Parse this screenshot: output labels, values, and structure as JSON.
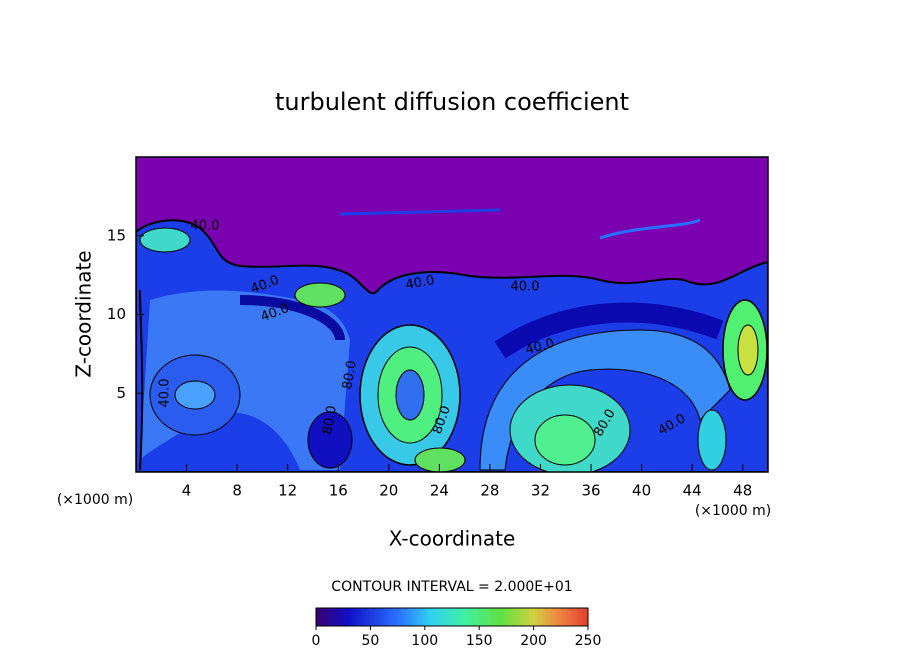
{
  "chart_data": {
    "type": "contour",
    "title": "turbulent diffusion coefficient",
    "x_label": "X-coordinate",
    "y_label": "Z-coordinate",
    "x_unit_left": "(×1000 m)",
    "x_unit_right": "(×1000 m)",
    "xlim": [
      0,
      50
    ],
    "ylim": [
      0,
      20
    ],
    "xticks": [
      4,
      8,
      12,
      16,
      20,
      24,
      28,
      32,
      36,
      40,
      44,
      48
    ],
    "yticks": [
      5,
      10,
      15
    ],
    "contour_interval_text": "CONTOUR INTERVAL = 2.000E+01",
    "contour_labels": [
      "40.0",
      "40.0",
      "40.0",
      "40.0",
      "40.0",
      "40.0",
      "40.0",
      "40.0",
      "80.0",
      "80.0",
      "80.0",
      "80.0"
    ],
    "colorbar": {
      "lim": [
        0,
        250
      ],
      "ticks": [
        0,
        50,
        100,
        150,
        200,
        250
      ]
    }
  }
}
